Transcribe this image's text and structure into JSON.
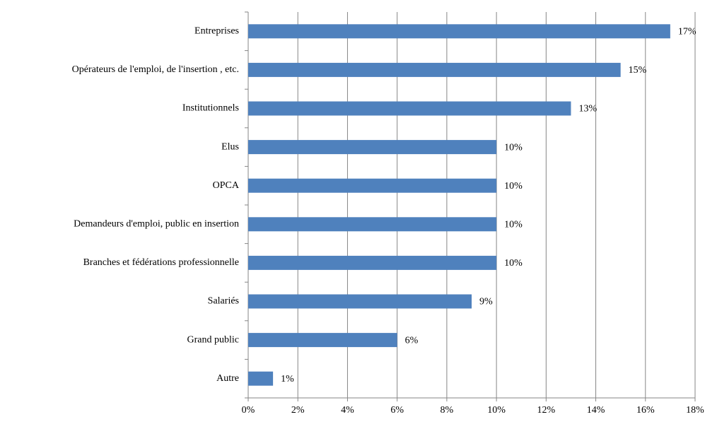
{
  "chart_data": {
    "type": "barh",
    "categories": [
      "Entreprises",
      "Opérateurs de l'emploi, de l'insertion , etc.",
      "Institutionnels",
      "Elus",
      "OPCA",
      "Demandeurs d'emploi, public en insertion",
      "Branches et fédérations professionnelle",
      "Salariés",
      "Grand public",
      "Autre"
    ],
    "values": [
      17,
      15,
      13,
      10,
      10,
      10,
      10,
      9,
      6,
      1
    ],
    "value_labels": [
      "17%",
      "15%",
      "13%",
      "10%",
      "10%",
      "10%",
      "10%",
      "9%",
      "6%",
      "1%"
    ],
    "color": "#4f81bd",
    "xlim": [
      0,
      18
    ],
    "xticks": [
      {
        "value": 0,
        "label": "0%"
      },
      {
        "value": 2,
        "label": "2%"
      },
      {
        "value": 4,
        "label": "4%"
      },
      {
        "value": 6,
        "label": "6%"
      },
      {
        "value": 8,
        "label": "8%"
      },
      {
        "value": 10,
        "label": "10%"
      },
      {
        "value": 12,
        "label": "12%"
      },
      {
        "value": 14,
        "label": "14%"
      },
      {
        "value": 16,
        "label": "16%"
      },
      {
        "value": 18,
        "label": "18%"
      }
    ],
    "grid": true
  }
}
